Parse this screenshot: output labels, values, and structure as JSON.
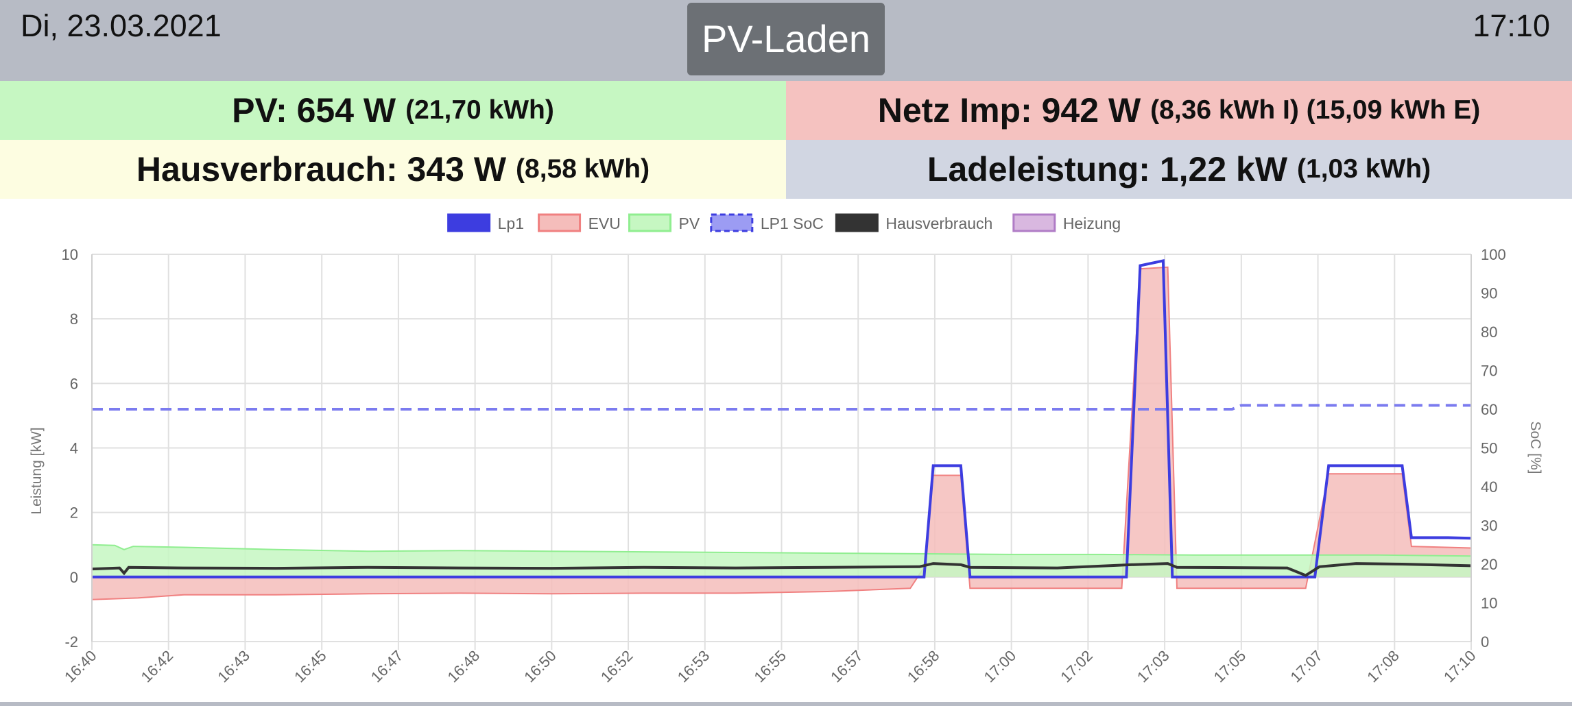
{
  "header": {
    "date": "Di, 23.03.2021",
    "time": "17:10",
    "mode_label": "PV-Laden"
  },
  "summary": {
    "pv": {
      "label": "PV: 654 W",
      "detail": "(21,70 kWh)",
      "color": "#c6f7c2"
    },
    "netz": {
      "label": "Netz Imp: 942 W",
      "detail": "(8,36 kWh I) (15,09 kWh E)",
      "color": "#f5c2c0"
    },
    "haus": {
      "label": "Hausverbrauch: 343 W",
      "detail": "(8,58 kWh)",
      "color": "#fdfde1"
    },
    "lade": {
      "label": "Ladeleistung: 1,22 kW",
      "detail": "(1,03 kWh)",
      "color": "#d1d6e2"
    }
  },
  "chart_data": {
    "type": "line",
    "x_ticks": [
      "16:40",
      "16:42",
      "16:43",
      "16:45",
      "16:47",
      "16:48",
      "16:50",
      "16:52",
      "16:53",
      "16:55",
      "16:57",
      "16:58",
      "17:00",
      "17:02",
      "17:03",
      "17:05",
      "17:07",
      "17:08",
      "17:10"
    ],
    "x_range": [
      0,
      30
    ],
    "ylabel": "Leistung [kW]",
    "y2label": "SoC [%]",
    "ylim": [
      -2,
      10
    ],
    "y_ticks": [
      -2,
      0,
      2,
      4,
      6,
      8,
      10
    ],
    "y2lim": [
      0,
      100
    ],
    "y2_ticks": [
      0,
      10,
      20,
      30,
      40,
      50,
      60,
      70,
      80,
      90,
      100
    ],
    "grid": true,
    "legend_position": "top-center",
    "legend": [
      "Lp1",
      "EVU",
      "PV",
      "LP1 SoC",
      "Hausverbrauch",
      "Heizung"
    ],
    "series": [
      {
        "name": "Lp1",
        "style": "line",
        "color": "#3d3de0",
        "axis": "left",
        "points": [
          [
            0,
            0
          ],
          [
            18.1,
            0
          ],
          [
            18.3,
            3.45
          ],
          [
            18.9,
            3.45
          ],
          [
            19.1,
            0
          ],
          [
            22.5,
            0
          ],
          [
            22.8,
            9.65
          ],
          [
            23.3,
            9.8
          ],
          [
            23.5,
            0
          ],
          [
            26.6,
            0
          ],
          [
            26.9,
            3.45
          ],
          [
            28.5,
            3.45
          ],
          [
            28.7,
            1.22
          ],
          [
            29.5,
            1.22
          ],
          [
            30,
            1.2
          ]
        ]
      },
      {
        "name": "EVU",
        "style": "area",
        "color": "#f08080",
        "fill": "#f5bdbb",
        "axis": "left",
        "points": [
          [
            0,
            -0.7
          ],
          [
            1,
            -0.65
          ],
          [
            2,
            -0.55
          ],
          [
            4,
            -0.55
          ],
          [
            6,
            -0.52
          ],
          [
            8,
            -0.5
          ],
          [
            10,
            -0.52
          ],
          [
            12,
            -0.5
          ],
          [
            14,
            -0.5
          ],
          [
            16,
            -0.45
          ],
          [
            17.8,
            -0.35
          ],
          [
            18.1,
            0.3
          ],
          [
            18.3,
            3.15
          ],
          [
            18.9,
            3.15
          ],
          [
            19.1,
            -0.35
          ],
          [
            21.5,
            -0.35
          ],
          [
            22.4,
            -0.35
          ],
          [
            22.8,
            9.55
          ],
          [
            23.4,
            9.6
          ],
          [
            23.6,
            -0.35
          ],
          [
            26.4,
            -0.35
          ],
          [
            26.9,
            3.2
          ],
          [
            28.5,
            3.2
          ],
          [
            28.7,
            0.95
          ],
          [
            30,
            0.9
          ]
        ]
      },
      {
        "name": "PV",
        "style": "area",
        "color": "#90ee90",
        "fill": "#c6f7c2",
        "axis": "left",
        "points": [
          [
            0,
            1.0
          ],
          [
            0.5,
            0.98
          ],
          [
            0.7,
            0.85
          ],
          [
            0.9,
            0.95
          ],
          [
            2,
            0.92
          ],
          [
            4,
            0.85
          ],
          [
            6,
            0.8
          ],
          [
            8,
            0.82
          ],
          [
            10,
            0.8
          ],
          [
            12,
            0.78
          ],
          [
            14,
            0.76
          ],
          [
            16,
            0.74
          ],
          [
            18,
            0.72
          ],
          [
            20,
            0.7
          ],
          [
            22,
            0.7
          ],
          [
            24,
            0.68
          ],
          [
            26,
            0.68
          ],
          [
            28,
            0.68
          ],
          [
            30,
            0.65
          ]
        ]
      },
      {
        "name": "LP1 SoC",
        "style": "dashed",
        "color": "#7b7bef",
        "axis": "right",
        "points": [
          [
            0,
            60
          ],
          [
            24.8,
            60
          ],
          [
            25,
            61
          ],
          [
            30,
            61
          ]
        ]
      },
      {
        "name": "Hausverbrauch",
        "style": "line",
        "color": "#333333",
        "axis": "left",
        "points": [
          [
            0,
            0.25
          ],
          [
            0.6,
            0.28
          ],
          [
            0.7,
            0.12
          ],
          [
            0.8,
            0.3
          ],
          [
            2,
            0.28
          ],
          [
            4,
            0.27
          ],
          [
            6,
            0.3
          ],
          [
            8,
            0.28
          ],
          [
            10,
            0.27
          ],
          [
            12,
            0.3
          ],
          [
            14,
            0.28
          ],
          [
            16,
            0.3
          ],
          [
            18,
            0.32
          ],
          [
            18.3,
            0.42
          ],
          [
            18.9,
            0.38
          ],
          [
            19.1,
            0.3
          ],
          [
            21,
            0.28
          ],
          [
            22.6,
            0.38
          ],
          [
            23.4,
            0.42
          ],
          [
            23.6,
            0.3
          ],
          [
            26,
            0.28
          ],
          [
            26.4,
            0.05
          ],
          [
            26.7,
            0.32
          ],
          [
            27.5,
            0.42
          ],
          [
            28.5,
            0.4
          ],
          [
            30,
            0.35
          ]
        ]
      },
      {
        "name": "Heizung",
        "style": "area",
        "color": "#b07cc6",
        "fill": "#d9b8e0",
        "axis": "left",
        "points": []
      }
    ]
  }
}
